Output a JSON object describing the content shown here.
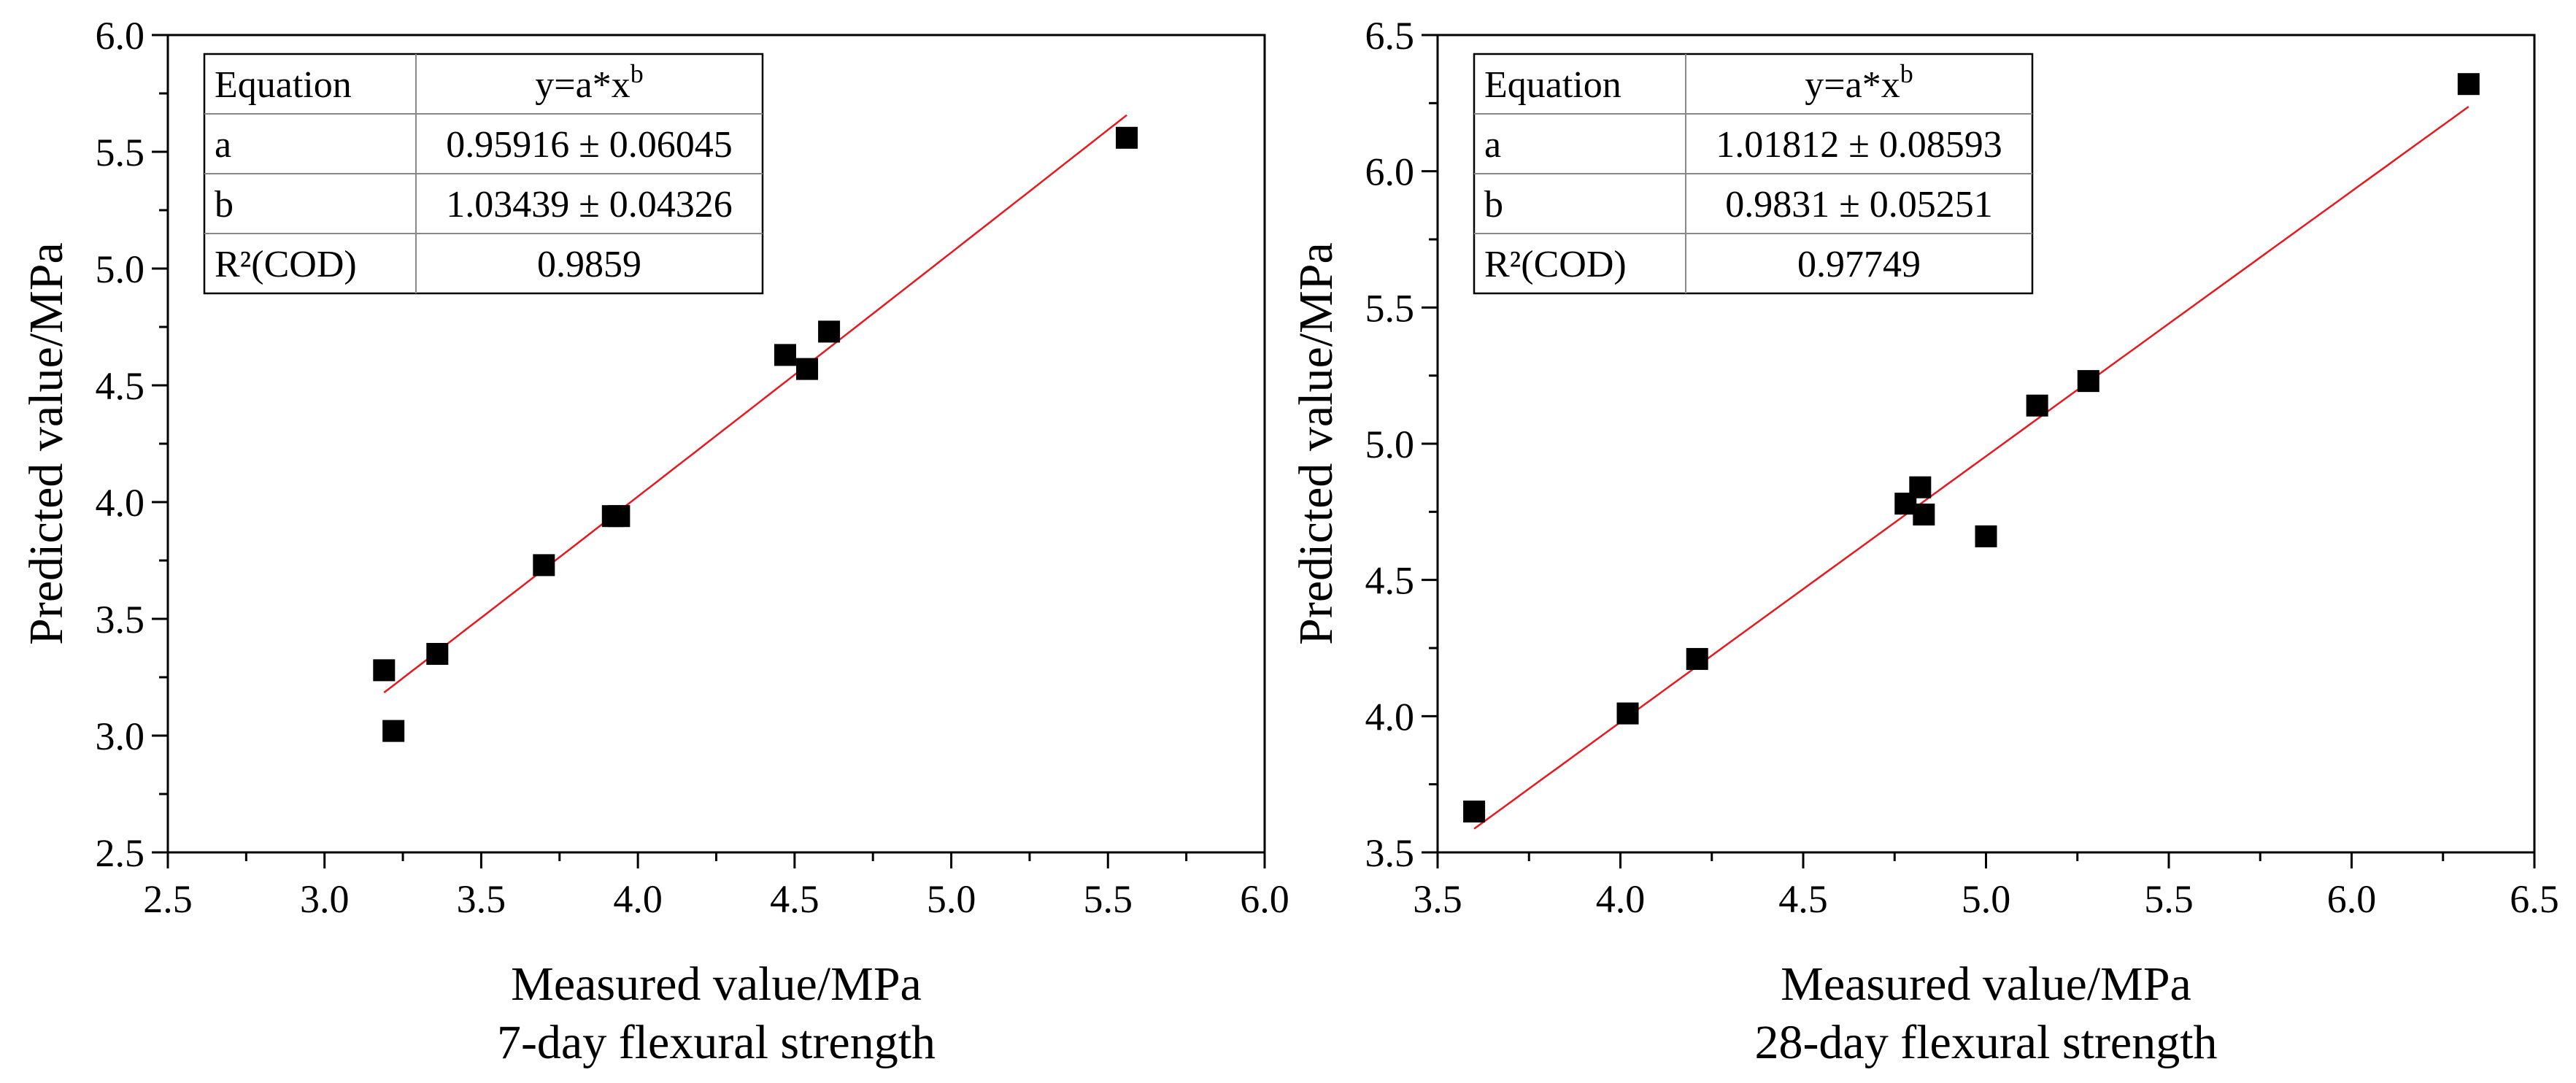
{
  "chart_data": [
    {
      "type": "scatter",
      "title": "7-day flexural strength",
      "xlabel": "Measured value/MPa",
      "ylabel": "Predicted value/MPa",
      "xlim": [
        2.5,
        6.0
      ],
      "ylim": [
        2.5,
        6.0
      ],
      "xticks": [
        2.5,
        3.0,
        3.5,
        4.0,
        4.5,
        5.0,
        5.5,
        6.0
      ],
      "yticks": [
        2.5,
        3.0,
        3.5,
        4.0,
        4.5,
        5.0,
        5.5,
        6.0
      ],
      "xtick_labels": [
        "2.5",
        "3.0",
        "3.5",
        "4.0",
        "4.5",
        "5.0",
        "5.5",
        "6.0"
      ],
      "ytick_labels": [
        "2.5",
        "3.0",
        "3.5",
        "4.0",
        "4.5",
        "5.0",
        "5.5",
        "6.0"
      ],
      "grid": false,
      "legend": "none",
      "series": [
        {
          "name": "data",
          "marker": "square",
          "color": "#000000",
          "points": [
            [
              3.19,
              3.28
            ],
            [
              3.22,
              3.02
            ],
            [
              3.36,
              3.35
            ],
            [
              3.7,
              3.73
            ],
            [
              3.92,
              3.94
            ],
            [
              3.94,
              3.94
            ],
            [
              4.47,
              4.63
            ],
            [
              4.54,
              4.57
            ],
            [
              4.61,
              4.73
            ],
            [
              5.56,
              5.56
            ]
          ]
        }
      ],
      "fit": {
        "model": "power",
        "a": 0.95916,
        "b": 1.03439,
        "x_range": [
          3.19,
          5.56
        ],
        "color": "#e8191e"
      },
      "fit_table": {
        "header": [
          "Equation",
          "y=a*x",
          "b"
        ],
        "rows": [
          [
            "a",
            "0.95916 ± 0.06045"
          ],
          [
            "b",
            "1.03439 ± 0.04326"
          ],
          [
            "R²(COD)",
            "0.9859"
          ]
        ]
      }
    },
    {
      "type": "scatter",
      "title": "28-day flexural strength",
      "xlabel": "Measured value/MPa",
      "ylabel": "Predicted value/MPa",
      "xlim": [
        3.5,
        6.5
      ],
      "ylim": [
        3.5,
        6.5
      ],
      "xticks": [
        3.5,
        4.0,
        4.5,
        5.0,
        5.5,
        6.0,
        6.5
      ],
      "yticks": [
        3.5,
        4.0,
        4.5,
        5.0,
        5.5,
        6.0,
        6.5
      ],
      "xtick_labels": [
        "3.5",
        "4.0",
        "4.5",
        "5.0",
        "5.5",
        "6.0",
        "6.5"
      ],
      "ytick_labels": [
        "3.5",
        "4.0",
        "4.5",
        "5.0",
        "5.5",
        "6.0",
        "6.5"
      ],
      "grid": false,
      "legend": "none",
      "series": [
        {
          "name": "data",
          "marker": "square",
          "color": "#000000",
          "points": [
            [
              3.6,
              3.65
            ],
            [
              4.02,
              4.01
            ],
            [
              4.21,
              4.21
            ],
            [
              4.78,
              4.78
            ],
            [
              4.82,
              4.84
            ],
            [
              4.83,
              4.74
            ],
            [
              5.0,
              4.66
            ],
            [
              5.14,
              5.14
            ],
            [
              5.28,
              5.23
            ],
            [
              6.32,
              6.32
            ]
          ]
        }
      ],
      "fit": {
        "model": "power",
        "a": 1.01812,
        "b": 0.9831,
        "x_range": [
          3.6,
          6.32
        ],
        "color": "#e8191e"
      },
      "fit_table": {
        "header": [
          "Equation",
          "y=a*x",
          "b"
        ],
        "rows": [
          [
            "a",
            "1.01812 ± 0.08593"
          ],
          [
            "b",
            "0.9831 ± 0.05251"
          ],
          [
            "R²(COD)",
            "0.97749"
          ]
        ]
      }
    }
  ]
}
